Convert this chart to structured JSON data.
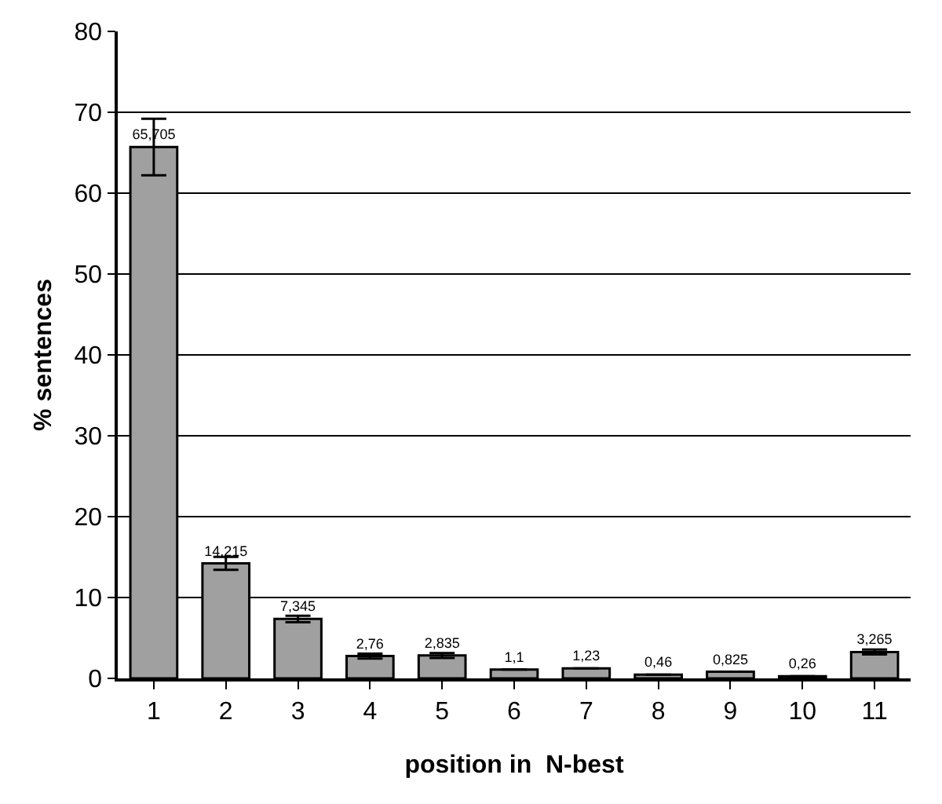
{
  "chart_data": {
    "type": "bar",
    "xlabel": "position in  N-best",
    "ylabel": "% sentences",
    "categories": [
      "1",
      "2",
      "3",
      "4",
      "5",
      "6",
      "7",
      "8",
      "9",
      "10",
      "11"
    ],
    "values": [
      65.705,
      14.215,
      7.345,
      2.76,
      2.835,
      1.1,
      1.23,
      0.46,
      0.825,
      0.26,
      3.265
    ],
    "value_labels": [
      "65,705",
      "14,215",
      "7,345",
      "2,76",
      "2,835",
      "1,1",
      "1,23",
      "0,46",
      "0,825",
      "0,26",
      "3,265"
    ],
    "errors": [
      3.5,
      0.8,
      0.4,
      0.3,
      0.3,
      null,
      null,
      null,
      null,
      null,
      0.3
    ],
    "color": "#a0a0a0",
    "ylim": [
      0,
      80
    ],
    "yticks": [
      0,
      10,
      20,
      30,
      40,
      50,
      60,
      70,
      80
    ],
    "grid": "y",
    "legend": false
  }
}
